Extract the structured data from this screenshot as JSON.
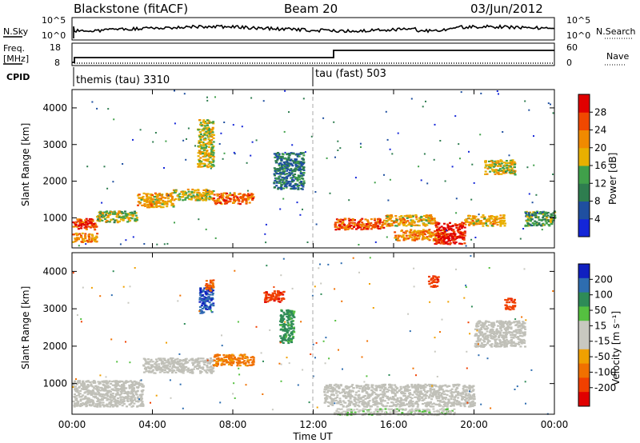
{
  "header": {
    "station": "Blackstone (fitACF)",
    "beam": "Beam 20",
    "date": "03/Jun/2012"
  },
  "top_panels": {
    "nsky_label": "N.Sky",
    "nsky_ticks": [
      "10^5",
      "10^0"
    ],
    "nsearch_label": "N.Search",
    "nsearch_ticks": [
      "10^5",
      "10^0"
    ],
    "freq_label": "Freq.",
    "freq_unit": "[MHz]",
    "freq_ticks": [
      "18",
      "8"
    ],
    "nave_label": "Nave",
    "nave_ticks": [
      "60",
      "0"
    ],
    "cpid_label": "CPID",
    "cpid_modes": [
      {
        "label": "themis (tau) 3310",
        "start_hour": 0
      },
      {
        "label": "tau (fast) 503",
        "start_hour": 12
      }
    ]
  },
  "colors": {
    "power_scale": [
      "#1426d8",
      "#1f4fa0",
      "#2e7d4f",
      "#40a04a",
      "#e8b000",
      "#f08a00",
      "#f04800",
      "#e00000"
    ],
    "velocity_scale": [
      "#1020c0",
      "#2e6db0",
      "#2e8b57",
      "#55c040",
      "#c8c8c0",
      "#c8c8c0",
      "#f0a000",
      "#f07000",
      "#f04000",
      "#e00000"
    ],
    "ground_scatter": "#c0c0b8"
  },
  "chart_data": [
    {
      "type": "heatmap",
      "panel": "power",
      "ylabel": "Slant Range [km]",
      "yticks": [
        "1000",
        "2000",
        "3000",
        "4000"
      ],
      "ylim": [
        180,
        4500
      ],
      "xlim": [
        0,
        24
      ],
      "colorbar_label": "Power [dB]",
      "colorbar_ticks": [
        "4",
        "8",
        "12",
        "16",
        "20",
        "24",
        "28"
      ],
      "color_range": [
        0,
        32
      ],
      "features": [
        {
          "h0": 0.0,
          "h1": 1.2,
          "r0": 700,
          "r1": 1000,
          "value": 27
        },
        {
          "h0": 0.0,
          "h1": 1.2,
          "r0": 350,
          "r1": 600,
          "value": 22
        },
        {
          "h0": 1.2,
          "h1": 3.2,
          "r0": 900,
          "r1": 1200,
          "value": 16
        },
        {
          "h0": 3.2,
          "h1": 5.0,
          "r0": 1300,
          "r1": 1700,
          "value": 20
        },
        {
          "h0": 5.0,
          "h1": 7.0,
          "r0": 1500,
          "r1": 1800,
          "value": 18
        },
        {
          "h0": 7.0,
          "h1": 9.0,
          "r0": 1400,
          "r1": 1700,
          "value": 24
        },
        {
          "h0": 6.2,
          "h1": 7.0,
          "r0": 2400,
          "r1": 3700,
          "value": 17
        },
        {
          "h0": 10.0,
          "h1": 11.5,
          "r0": 1800,
          "r1": 2800,
          "value": 9
        },
        {
          "h0": 13.0,
          "h1": 15.5,
          "r0": 700,
          "r1": 1000,
          "value": 26
        },
        {
          "h0": 15.5,
          "h1": 18.0,
          "r0": 800,
          "r1": 1100,
          "value": 20
        },
        {
          "h0": 16.0,
          "h1": 18.5,
          "r0": 400,
          "r1": 700,
          "value": 22
        },
        {
          "h0": 18.0,
          "h1": 19.5,
          "r0": 300,
          "r1": 900,
          "value": 29
        },
        {
          "h0": 19.5,
          "h1": 21.5,
          "r0": 800,
          "r1": 1100,
          "value": 20
        },
        {
          "h0": 20.5,
          "h1": 22.0,
          "r0": 2200,
          "r1": 2600,
          "value": 18
        },
        {
          "h0": 22.5,
          "h1": 24.0,
          "r0": 800,
          "r1": 1200,
          "value": 12
        }
      ]
    },
    {
      "type": "heatmap",
      "panel": "velocity",
      "xlabel": "Time UT",
      "ylabel": "Slant Range [km]",
      "xticks": [
        "00:00",
        "04:00",
        "08:00",
        "12:00",
        "16:00",
        "20:00",
        "00:00"
      ],
      "yticks": [
        "1000",
        "2000",
        "3000",
        "4000"
      ],
      "ylim": [
        180,
        4500
      ],
      "xlim": [
        0,
        24
      ],
      "colorbar_label": "Velocity [m s⁻¹]",
      "colorbar_ticks": [
        "200",
        "100",
        "50",
        "15",
        "-15",
        "-50",
        "-100",
        "-200"
      ],
      "color_range": [
        -250,
        250
      ],
      "features": [
        {
          "h0": 0.0,
          "h1": 3.5,
          "r0": 400,
          "r1": 1100,
          "value": 0,
          "ground": true
        },
        {
          "h0": 3.5,
          "h1": 7.0,
          "r0": 1300,
          "r1": 1700,
          "value": 0,
          "ground": true
        },
        {
          "h0": 7.0,
          "h1": 9.0,
          "r0": 1500,
          "r1": 1800,
          "value": -120
        },
        {
          "h0": 6.3,
          "h1": 7.0,
          "r0": 2900,
          "r1": 3600,
          "value": 200
        },
        {
          "h0": 6.6,
          "h1": 7.0,
          "r0": 3500,
          "r1": 3800,
          "value": -150
        },
        {
          "h0": 9.5,
          "h1": 10.5,
          "r0": 3200,
          "r1": 3500,
          "value": -180
        },
        {
          "h0": 10.3,
          "h1": 11.0,
          "r0": 2100,
          "r1": 3000,
          "value": 120
        },
        {
          "h0": 12.5,
          "h1": 20.0,
          "r0": 400,
          "r1": 1000,
          "value": 0,
          "ground": true
        },
        {
          "h0": 13.0,
          "h1": 19.0,
          "r0": 180,
          "r1": 350,
          "value": 30
        },
        {
          "h0": 20.0,
          "h1": 22.5,
          "r0": 2000,
          "r1": 2700,
          "value": 0,
          "ground": true
        },
        {
          "h0": 17.7,
          "h1": 18.2,
          "r0": 3600,
          "r1": 3900,
          "value": -180
        },
        {
          "h0": 21.5,
          "h1": 22.0,
          "r0": 3000,
          "r1": 3300,
          "value": -180
        }
      ]
    }
  ]
}
